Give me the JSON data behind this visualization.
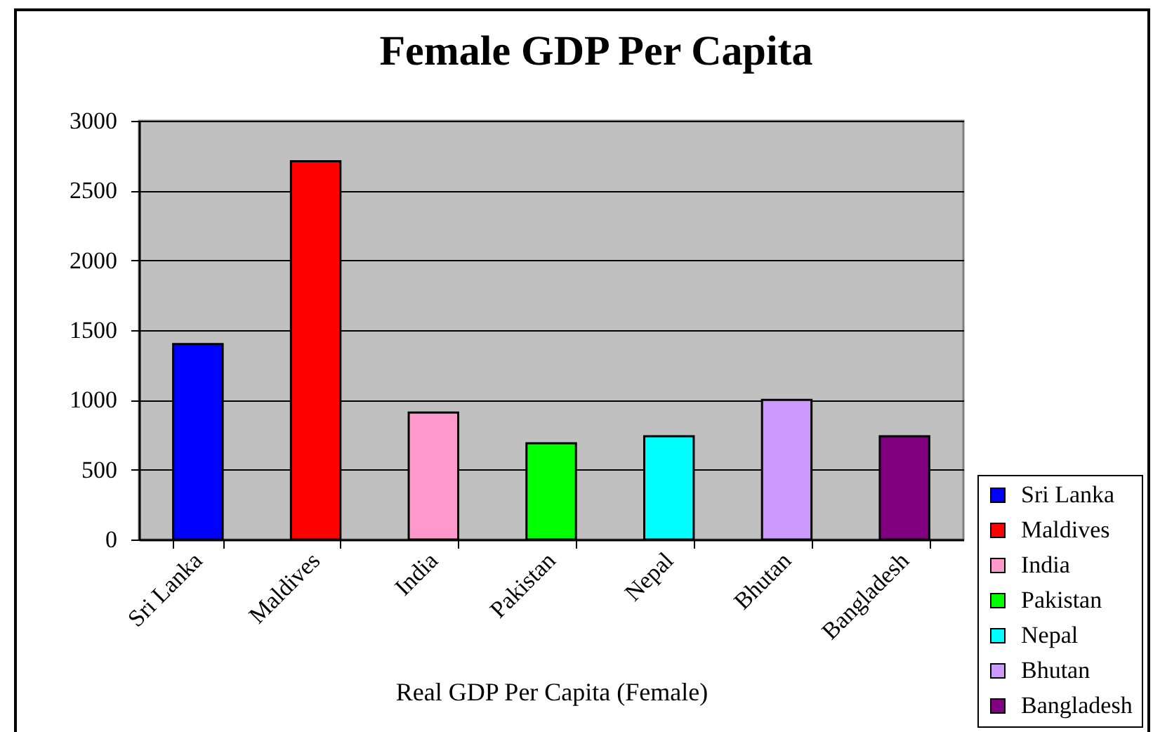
{
  "chart_data": {
    "type": "bar",
    "title": "Female GDP Per Capita",
    "xlabel": "Real GDP Per Capita (Female)",
    "categories": [
      "Sri Lanka",
      "Maldives",
      "India",
      "Pakistan",
      "Nepal",
      "Bhutan",
      "Bangladesh"
    ],
    "series": [
      {
        "name": "Sri Lanka",
        "color": "#0000ff",
        "values": [
          1400,
          null,
          null,
          null,
          null,
          null,
          null
        ]
      },
      {
        "name": "Maldives",
        "color": "#ff0000",
        "values": [
          null,
          2710,
          null,
          null,
          null,
          null,
          null
        ]
      },
      {
        "name": "India",
        "color": "#ff99cc",
        "values": [
          null,
          null,
          910,
          null,
          null,
          null,
          null
        ]
      },
      {
        "name": "Pakistan",
        "color": "#00ff00",
        "values": [
          null,
          null,
          null,
          690,
          null,
          null,
          null
        ]
      },
      {
        "name": "Nepal",
        "color": "#00ffff",
        "values": [
          null,
          null,
          null,
          null,
          740,
          null,
          null
        ]
      },
      {
        "name": "Bhutan",
        "color": "#cc99ff",
        "values": [
          null,
          null,
          null,
          null,
          null,
          1000,
          null
        ]
      },
      {
        "name": "Bangladesh",
        "color": "#800080",
        "values": [
          null,
          null,
          null,
          null,
          null,
          null,
          740
        ]
      }
    ],
    "ylim": [
      0,
      3000
    ],
    "yticks": [
      0,
      500,
      1000,
      1500,
      2000,
      2500,
      3000
    ],
    "grid": "y",
    "legend": "right"
  }
}
